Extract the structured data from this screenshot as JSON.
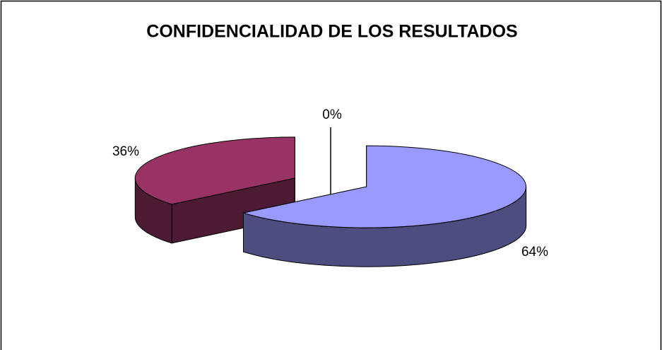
{
  "chart_data": {
    "type": "pie3d",
    "title": "CONFIDENCIALIDAD DE LOS RESULTADOS",
    "values": [
      64,
      36,
      0
    ],
    "value_labels": [
      "64%",
      "36%",
      "0%"
    ],
    "colors": [
      "#9999ff",
      "#993366",
      "#ffffcc"
    ],
    "legend": false
  }
}
